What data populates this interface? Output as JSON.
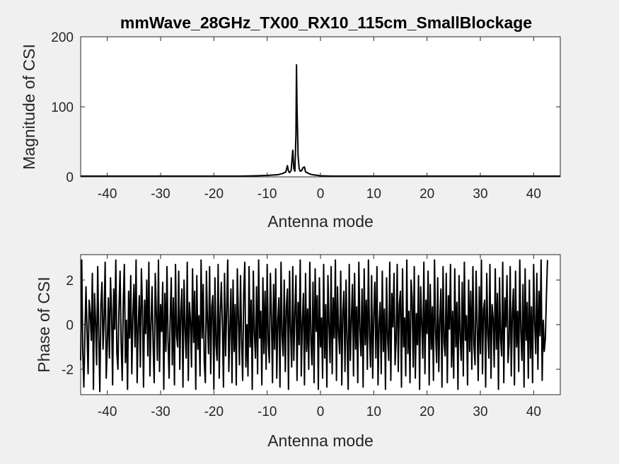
{
  "chart_data": [
    {
      "type": "line",
      "title": "mmWave_28GHz_TX00_RX10_115cm_SmallBlockage",
      "xlabel": "Antenna mode",
      "ylabel": "Magnitude of CSI",
      "xlim": [
        -45,
        45
      ],
      "ylim": [
        0,
        200
      ],
      "xticks": [
        -40,
        -30,
        -20,
        -10,
        0,
        10,
        20,
        30,
        40
      ],
      "yticks": [
        0,
        100,
        200
      ],
      "grid": false,
      "line_color": "#000000",
      "series": [
        {
          "x": [
            -45,
            -40,
            -30,
            -20,
            -15,
            -12,
            -10,
            -9,
            -8,
            -7.5,
            -7,
            -6.5,
            -6.2,
            -6,
            -5.8,
            -5.5,
            -5.2,
            -5,
            -4.8,
            -4.6,
            -4.5,
            -4.4,
            -4.2,
            -4,
            -3.8,
            -3.5,
            -3.3,
            -3,
            -2.8,
            -2.5,
            -2,
            -1.5,
            -1,
            0,
            2,
            5,
            10,
            20,
            30,
            40,
            45
          ],
          "y": [
            1,
            1,
            1,
            1,
            1,
            1.5,
            2,
            2.5,
            3,
            4,
            5,
            7,
            16,
            8,
            6,
            9,
            38,
            12,
            8,
            60,
            160,
            100,
            30,
            12,
            8,
            9,
            13,
            14,
            7,
            6,
            4,
            3,
            2.5,
            1.5,
            1,
            1,
            1,
            1,
            1,
            1,
            1
          ]
        }
      ]
    },
    {
      "type": "line",
      "title": "",
      "xlabel": "Antenna mode",
      "ylabel": "Phase of CSI",
      "xlim": [
        -45,
        45
      ],
      "ylim": [
        -3.14,
        3.14
      ],
      "xticks": [
        -40,
        -30,
        -20,
        -10,
        0,
        10,
        20,
        30,
        40
      ],
      "yticks": [
        -2,
        0,
        2
      ],
      "grid": false,
      "line_color": "#000000",
      "x_start": -45,
      "x_step": 0.2,
      "series": [
        {
          "y": [
            -1.6,
            2.9,
            -1.2,
            -2.8,
            -0.4,
            1.7,
            -0.3,
            -2.2,
            1.1,
            0.5,
            -0.7,
            2.3,
            -2.9,
            1.4,
            0.1,
            -1.8,
            2.6,
            -0.5,
            -3.0,
            0.9,
            1.9,
            -1.1,
            0.3,
            2.8,
            -2.4,
            -0.9,
            1.2,
            -1.5,
            2.1,
            0.6,
            -2.7,
            1.6,
            -0.2,
            2.9,
            -1.3,
            -2.0,
            0.8,
            2.4,
            -0.8,
            -2.5,
            1.0,
            2.7,
            -1.7,
            0.2,
            -2.9,
            1.5,
            -0.6,
            2.2,
            -2.2,
            0.4,
            1.8,
            -1.0,
            2.9,
            -2.6,
            -0.1,
            1.3,
            -1.9,
            2.5,
            0.7,
            -2.8,
            1.1,
            -0.4,
            2.0,
            -1.4,
            2.8,
            -2.3,
            0.0,
            1.7,
            -0.9,
            -2.6,
            2.3,
            0.5,
            -1.6,
            2.9,
            -2.1,
            0.9,
            -0.3,
            1.9,
            -2.9,
            1.4,
            -1.2,
            2.6,
            -0.7,
            -2.4,
            0.3,
            2.1,
            -1.8,
            1.2,
            -2.7,
            2.7,
            -0.5,
            -1.0,
            2.4,
            -2.0,
            0.6,
            1.6,
            -2.8,
            2.0,
            -0.2,
            -1.5,
            2.8,
            -2.5,
            1.0,
            0.2,
            -1.9,
            2.5,
            -0.8,
            1.5,
            -2.9,
            2.2,
            -1.1,
            0.4,
            -2.3,
            2.9,
            -0.6,
            1.8,
            -1.7,
            -2.6,
            2.4,
            0.1,
            -1.3,
            2.6,
            -2.2,
            0.8,
            1.3,
            -2.9,
            2.1,
            -0.9,
            -1.6,
            2.7,
            -2.4,
            0.5,
            1.9,
            -0.1,
            -2.8,
            2.3,
            -1.4,
            0.7,
            2.9,
            -2.1,
            -0.3,
            1.6,
            -2.6,
            2.0,
            -1.2,
            0.9,
            -2.7,
            2.5,
            0.3,
            -1.8,
            2.2,
            -0.7,
            -2.5,
            1.4,
            2.8,
            -1.9,
            0.0,
            -2.3,
            2.6,
            -1.0,
            1.1,
            -2.9,
            2.4,
            -0.4,
            -1.5,
            1.7,
            -2.2,
            2.9,
            -0.6,
            0.6,
            -2.7,
            2.1,
            -1.3,
            1.5,
            -2.0,
            2.7,
            -0.8,
            -1.7,
            2.3,
            0.4,
            -2.6,
            1.8,
            -1.1,
            2.5,
            -2.4,
            0.2,
            1.2,
            -2.8,
            2.8,
            -0.5,
            -1.4,
            2.0,
            -2.1,
            0.8,
            1.6,
            -2.9,
            2.4,
            -0.2,
            -1.9,
            2.6,
            -1.6,
            0.5,
            2.2,
            -2.5,
            1.0,
            -0.9,
            2.9,
            -2.3,
            0.1,
            1.4,
            -2.7,
            2.3,
            -1.2,
            0.7,
            -2.0,
            2.8,
            -0.7,
            -1.8,
            1.9,
            -2.6,
            2.5,
            -0.3,
            1.3,
            -2.9,
            2.1,
            -1.0,
            0.3,
            -2.4,
            2.7,
            -1.5,
            0.9,
            -2.8,
            2.2,
            0.0,
            -1.7,
            2.6,
            -2.2,
            1.2,
            -0.6,
            2.9,
            -2.5,
            1.7,
            -0.4,
            -1.3,
            2.4,
            -2.7,
            0.6,
            1.5,
            -2.1,
            2.0,
            -0.8,
            -2.9,
            2.7,
            -1.6,
            0.2,
            1.8,
            -2.3,
            2.3,
            -1.1,
            0.8,
            -2.6,
            2.8,
            -0.2,
            -1.4,
            1.6,
            -2.8,
            2.5,
            -0.9,
            1.1,
            -2.0,
            2.9,
            -0.5,
            -1.9,
            2.2,
            -2.4,
            0.4,
            1.9,
            -1.5,
            2.6,
            -2.7,
            0.0,
            1.0,
            -2.2,
            2.4,
            -1.2,
            0.7,
            -2.9,
            2.1,
            -0.6,
            -1.6,
            2.8,
            -2.5,
            1.4,
            -0.1,
            2.3,
            -1.8,
            -0.7,
            2.7,
            -2.1,
            0.9,
            1.5,
            -2.8,
            2.5,
            -1.0,
            0.3,
            -2.3,
            2.9,
            -1.3,
            0.6,
            -2.6,
            2.0,
            1.2,
            -1.9,
            2.6,
            -2.4,
            0.5,
            -0.9,
            2.2,
            -2.9,
            1.7,
            0.1,
            -1.5,
            2.8,
            -2.2,
            1.1,
            -0.4,
            2.4,
            -2.7,
            1.8,
            -1.1,
            0.8,
            -2.5,
            2.9,
            -0.3,
            -1.7,
            2.1,
            -2.1,
            0.2,
            1.6,
            -2.8,
            2.6,
            -0.8,
            -1.4,
            2.3,
            -2.6,
            1.3,
            -0.2,
            2.7,
            -1.9,
            0.6,
            -2.4,
            2.5,
            -1.0,
            1.0,
            -2.9,
            2.2,
            -0.5,
            -1.6,
            1.9,
            -2.3,
            2.8,
            -0.7,
            0.4,
            -2.7,
            2.0,
            -1.2,
            1.5,
            -2.0,
            2.6,
            -0.9,
            -1.8,
            2.4,
            0.0,
            -2.5,
            1.7,
            -1.3,
            2.9,
            -2.2,
            0.7,
            1.1,
            -2.8,
            2.3,
            -0.4,
            -1.5,
            2.7,
            -2.4,
            0.9,
            0.3,
            -1.9,
            2.5,
            -1.1,
            1.4,
            -2.9,
            2.1,
            -0.6,
            -1.4,
            2.8,
            -2.6,
            1.2,
            -0.1,
            2.2,
            -1.7,
            -0.8,
            2.6,
            -2.3,
            0.5,
            1.6,
            -2.7,
            2.4,
            -1.0,
            0.6,
            -2.1,
            2.9,
            -0.3,
            -1.6,
            1.8,
            -2.8,
            2.5,
            -0.7,
            1.0,
            -2.4,
            2.0,
            -1.5,
            0.8,
            -2.6,
            2.7,
            0.1,
            -1.3,
            2.3,
            -2.0,
            1.5,
            -0.5,
            2.9,
            -2.5,
            0.2,
            -1.2,
            -0.6,
            1.3,
            2.9
          ]
        }
      ]
    }
  ]
}
